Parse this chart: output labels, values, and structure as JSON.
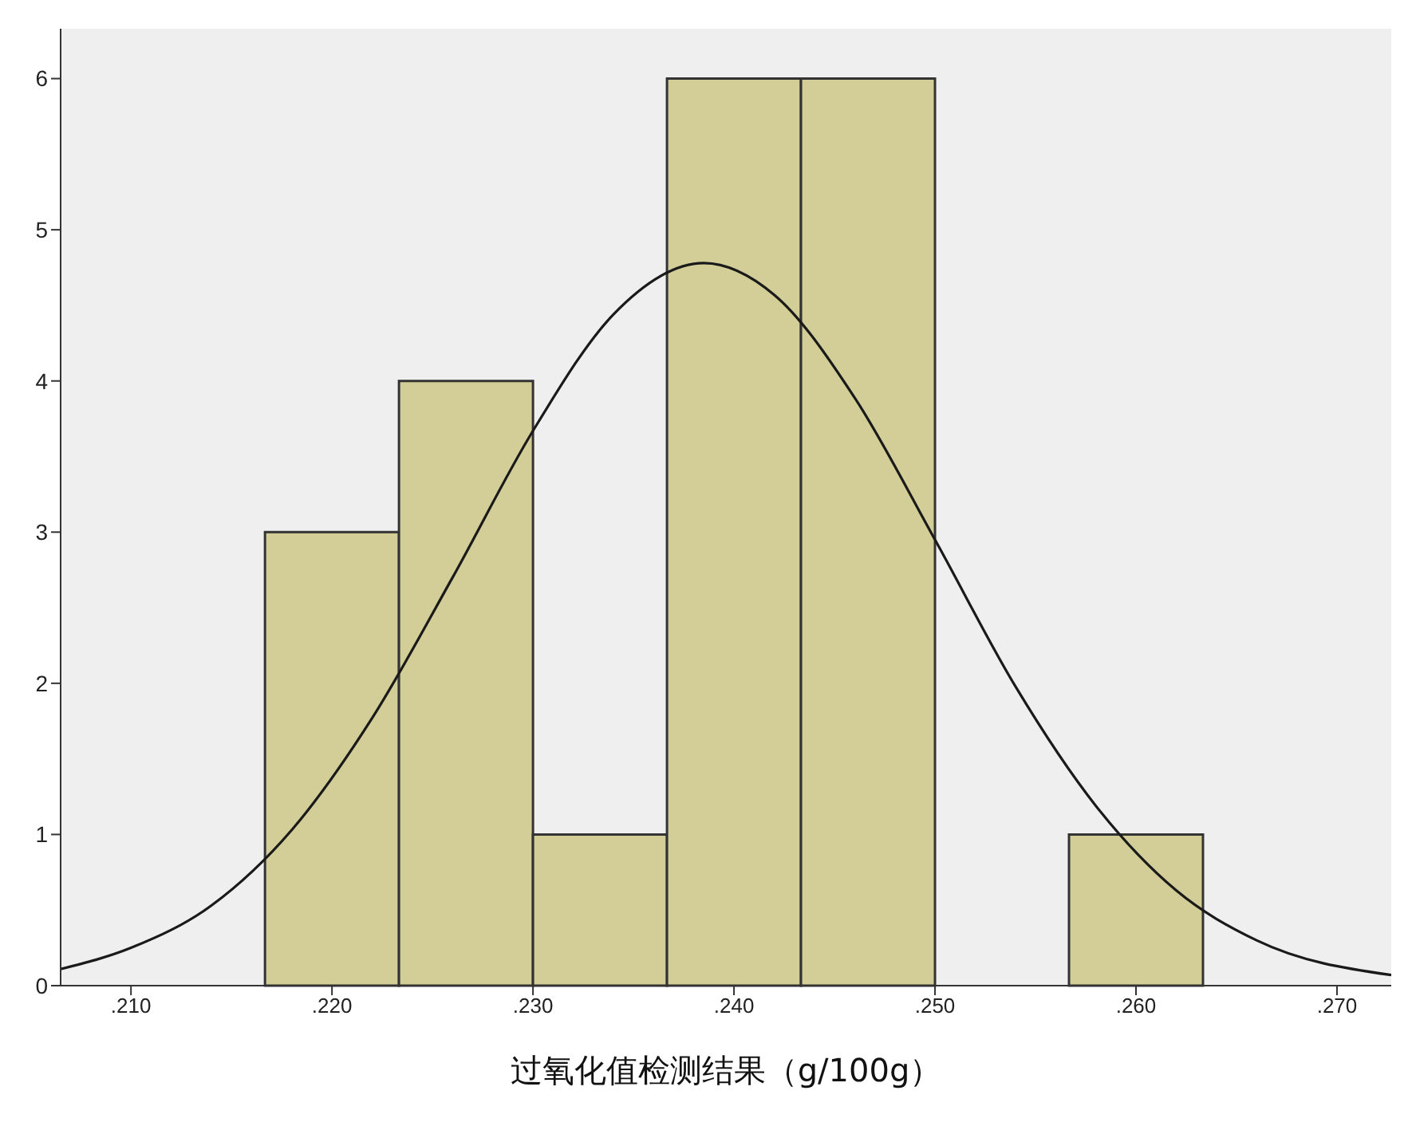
{
  "chart_data": {
    "type": "histogram",
    "xlabel": "过氧化值检测结果（g/100g）",
    "bins": [
      0.216667,
      0.223333,
      0.23,
      0.236667,
      0.243333,
      0.25,
      0.256667,
      0.263333
    ],
    "values": [
      3,
      4,
      1,
      6,
      6,
      0,
      1
    ],
    "color": "#d3ce97",
    "series": [
      {
        "type": "line",
        "color": "#1a1a1a",
        "x": [
          0.2065,
          0.21,
          0.214,
          0.218,
          0.222,
          0.226,
          0.23,
          0.234,
          0.2385,
          0.242,
          0.246,
          0.25,
          0.254,
          0.258,
          0.262,
          0.266,
          0.2727
        ],
        "values": [
          0.11,
          0.25,
          0.53,
          1.03,
          1.77,
          2.7,
          3.67,
          4.44,
          4.78,
          4.57,
          3.89,
          2.95,
          1.98,
          1.19,
          0.63,
          0.3,
          0.07
        ]
      }
    ],
    "xlim": [
      0.2065,
      0.2727
    ],
    "xticks": [
      {
        "value": 0.21,
        "label": ".210"
      },
      {
        "value": 0.22,
        "label": ".220"
      },
      {
        "value": 0.23,
        "label": ".230"
      },
      {
        "value": 0.24,
        "label": ".240"
      },
      {
        "value": 0.25,
        "label": ".250"
      },
      {
        "value": 0.26,
        "label": ".260"
      },
      {
        "value": 0.27,
        "label": ".270"
      }
    ],
    "ylim": [
      0,
      6.33
    ],
    "yticks": [
      0,
      1,
      2,
      3,
      4,
      5,
      6
    ],
    "grid": false
  }
}
